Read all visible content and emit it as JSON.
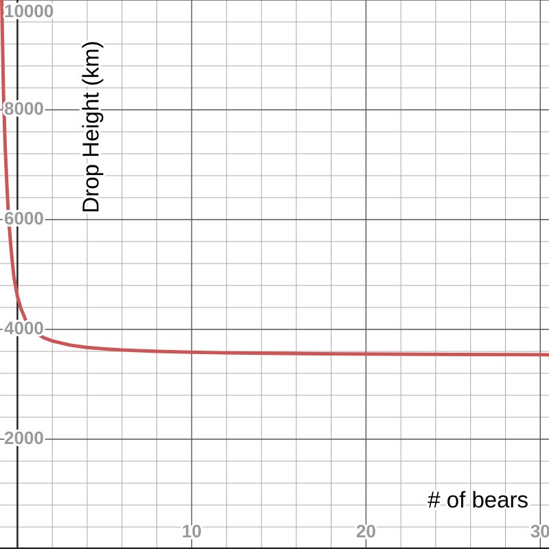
{
  "chart_data": {
    "type": "line",
    "title": "",
    "xlabel": "# of bears",
    "ylabel": "Drop Height (km)",
    "xlim": [
      -1,
      30.5
    ],
    "ylim": [
      0,
      10000
    ],
    "x_ticks": [
      10,
      20,
      30
    ],
    "y_ticks": [
      2000,
      4000,
      6000,
      8000,
      10000
    ],
    "x_tick_labels": [
      "10",
      "20",
      "30"
    ],
    "y_tick_labels": [
      "2000",
      "4000",
      "6000",
      "8000",
      "10000"
    ],
    "minor_x_step": 2,
    "minor_y_step": 400,
    "grid": true,
    "legend": "none",
    "series": [
      {
        "color": "#cc5555",
        "x": [
          -0.9,
          -0.8,
          -0.7,
          -0.6,
          -0.5,
          -0.4,
          -0.3,
          -0.2,
          0,
          0.2,
          0.5,
          1,
          1.5,
          2,
          3,
          4,
          5,
          6,
          8,
          10,
          12,
          15,
          18,
          20,
          25,
          30,
          30.5
        ],
        "y": [
          10000,
          8300,
          7300,
          6600,
          6000,
          5600,
          5250,
          4950,
          4600,
          4380,
          4150,
          3950,
          3850,
          3790,
          3715,
          3670,
          3645,
          3625,
          3600,
          3585,
          3573,
          3562,
          3555,
          3551,
          3544,
          3539,
          3538
        ]
      }
    ]
  }
}
